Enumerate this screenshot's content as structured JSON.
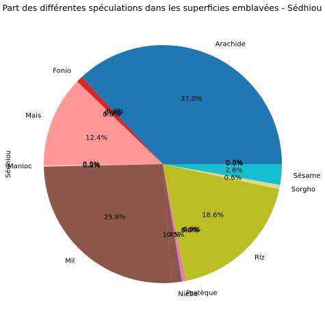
{
  "chart_data": {
    "type": "pie",
    "title": "Part des différentes spéculations dans les superficies emblavées - Sédhiou",
    "ylabel": "Sédhiou",
    "start_angle_deg": 0,
    "direction": "counterclockwise",
    "slices": [
      {
        "label": "Arachide",
        "value": 37.0,
        "pct_label": "37.0%",
        "color": "#1f77b4"
      },
      {
        "label": "Fonio",
        "value": 0.9,
        "pct_label": "0.9%",
        "color": "#d62728"
      },
      {
        "label": "Mais",
        "value": 12.4,
        "pct_label": "12.4%",
        "color": "#ff9896"
      },
      {
        "label": "Manioc",
        "value": 0.2,
        "pct_label": "0.2%",
        "color": "#e0c3bc"
      },
      {
        "label": "Mil",
        "value": 25.9,
        "pct_label": "25.9%",
        "color": "#8c564b"
      },
      {
        "label": "Niebe",
        "value": 1.4,
        "pct_label": "1.4%",
        "color": "#8c564b"
      },
      {
        "label": "Pastèque",
        "value": 0.5,
        "pct_label": "0.5%",
        "color": "#e377c2"
      },
      {
        "label": "Riz",
        "value": 18.6,
        "pct_label": "18.6%",
        "color": "#bcbd22"
      },
      {
        "label": "Sorgho",
        "value": 0.6,
        "pct_label": "0.6%",
        "color": "#dbdb8d"
      },
      {
        "label": "Sésame",
        "value": 2.8,
        "pct_label": "2.8%",
        "color": "#17becf"
      }
    ],
    "extra_labels": [
      {
        "text": "0.0%",
        "angle_deg": 132
      },
      {
        "text": "0.0%",
        "angle_deg": 134
      },
      {
        "text": "0.0%",
        "angle_deg": 136
      },
      {
        "text": "0.0%",
        "angle_deg": 180
      },
      {
        "text": "0.0%",
        "angle_deg": 181
      },
      {
        "text": "0.0%",
        "angle_deg": 292
      },
      {
        "text": "0.0%",
        "angle_deg": 293
      },
      {
        "text": "0.0%",
        "angle_deg": 294
      },
      {
        "text": "0.0%",
        "angle_deg": 0.5
      },
      {
        "text": "0.0%",
        "angle_deg": 1.5
      }
    ]
  }
}
